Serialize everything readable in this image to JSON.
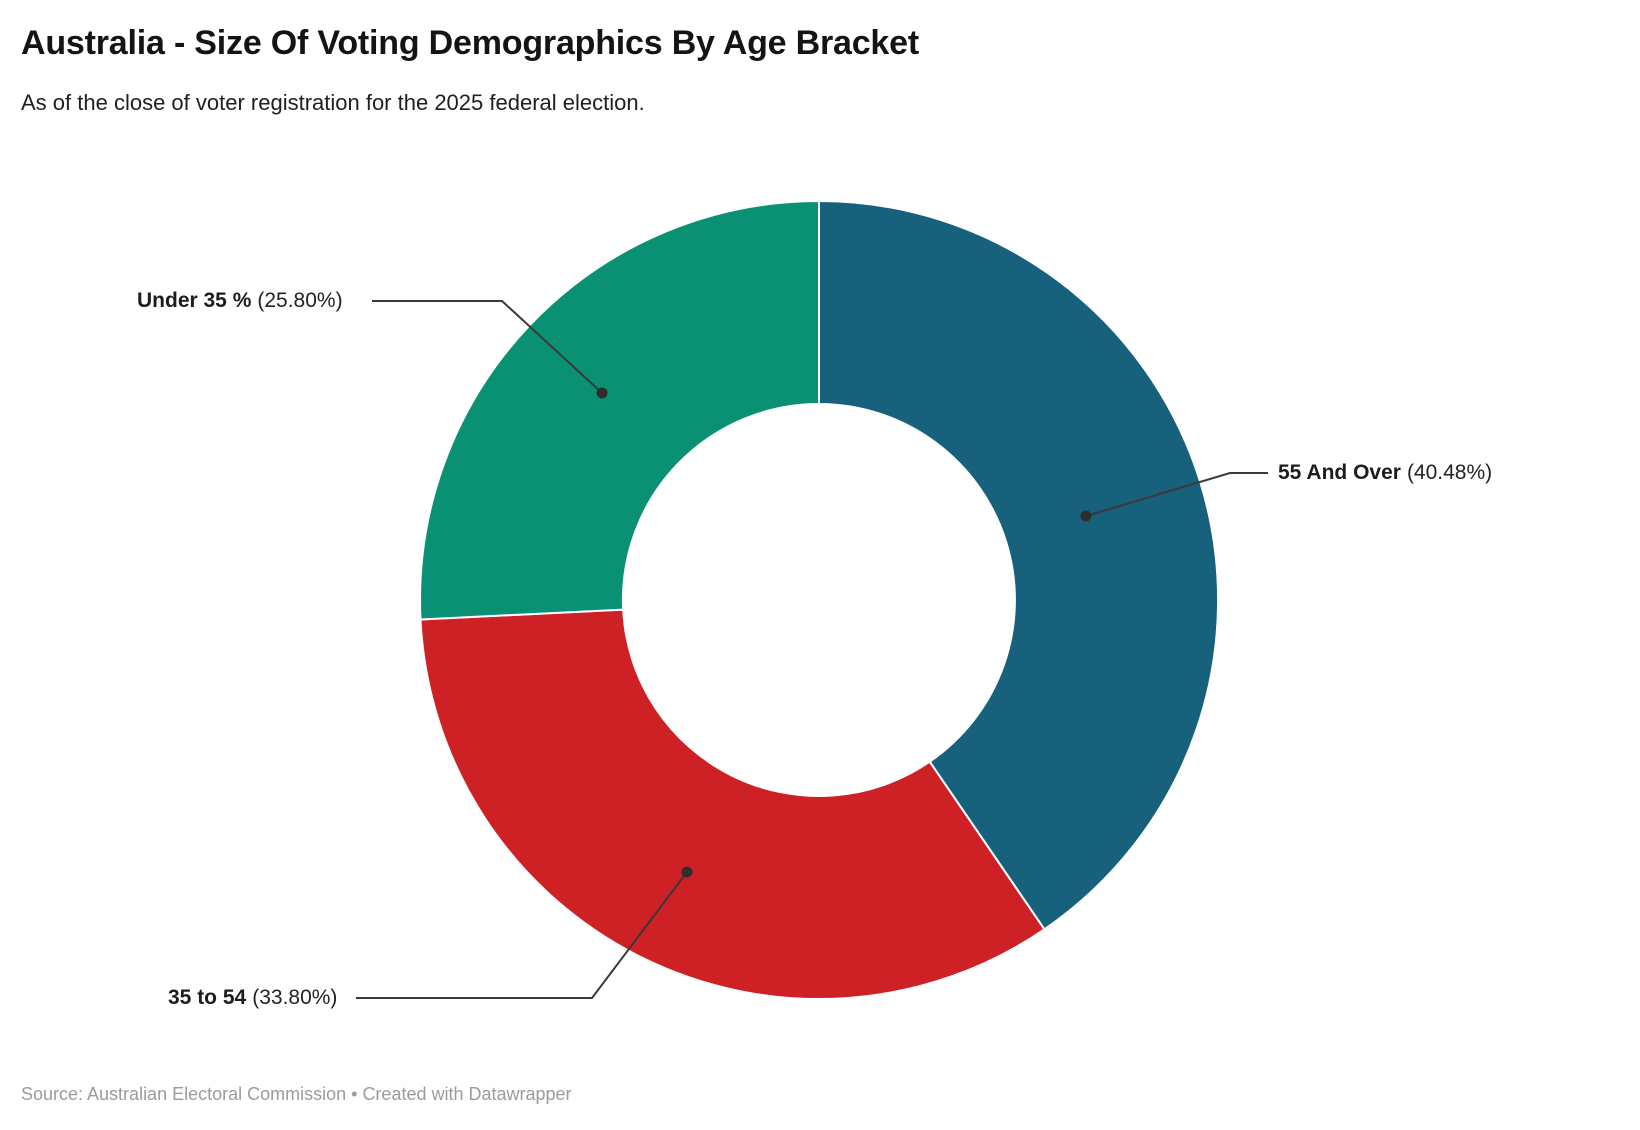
{
  "header": {
    "title": "Australia - Size Of Voting Demographics By Age Bracket",
    "subtitle": "As of the close of voter registration for the 2025 federal election."
  },
  "footer": {
    "source": "Source: Australian Electoral Commission • Created with Datawrapper"
  },
  "chart_data": {
    "type": "pie",
    "donut": true,
    "title": "Australia - Size Of Voting Demographics By Age Bracket",
    "subtitle": "As of the close of voter registration for the 2025 federal election.",
    "start_angle_deg": 0,
    "direction": "clockwise",
    "inner_radius_ratio": 0.49,
    "slices": [
      {
        "label": "55 And Over",
        "value": 40.48,
        "display": "(40.48%)",
        "color": "#17617D"
      },
      {
        "label": "35 to 54",
        "value": 33.8,
        "display": "(33.80%)",
        "color": "#CE2125"
      },
      {
        "label": "Under 35 %",
        "value": 25.8,
        "display": "(25.80%)",
        "color": "#0A9174"
      }
    ],
    "colors": {
      "connector": "#3a3a3a",
      "dot": "#2e2e2e",
      "slice_border": "#ffffff"
    }
  }
}
